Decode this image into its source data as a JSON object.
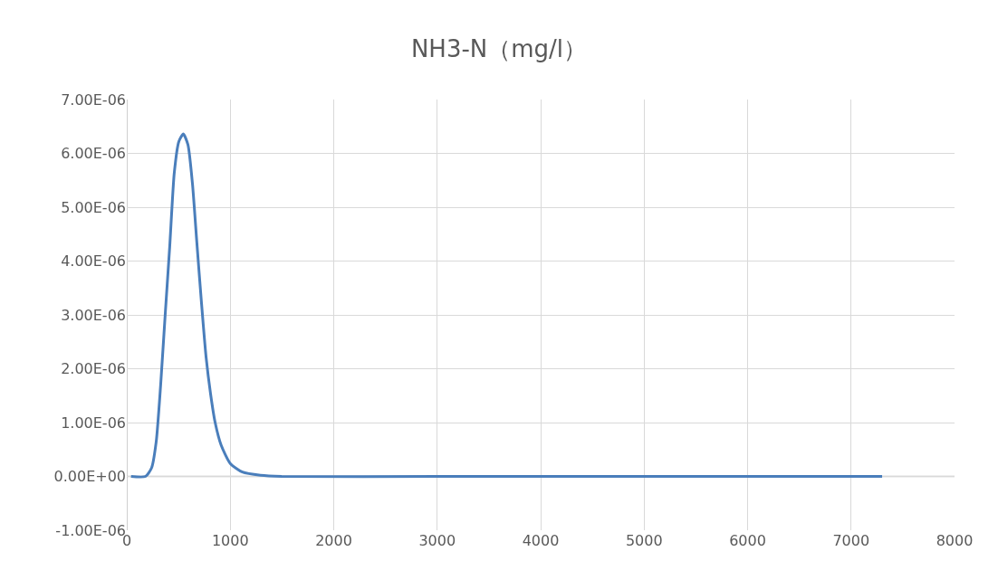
{
  "chart_data": {
    "type": "line",
    "title": "NH3-N（mg/l）",
    "series": [
      {
        "color": "#4a7ebb",
        "x": [
          41,
          181,
          240,
          284,
          327,
          371,
          415,
          459,
          503,
          547,
          591,
          635,
          678,
          722,
          766,
          810,
          854,
          912,
          1000,
          1117,
          1292,
          1497,
          3000,
          5000,
          7300
        ],
        "values": [
          0,
          0,
          1.6e-07,
          6.4e-07,
          1.69e-06,
          3e-06,
          4.27e-06,
          5.64e-06,
          6.22e-06,
          6.36e-06,
          6.16e-06,
          5.43e-06,
          4.32e-06,
          3.22e-06,
          2.22e-06,
          1.53e-06,
          1e-06,
          5.8e-07,
          2.4e-07,
          8e-08,
          2e-08,
          0,
          0,
          0,
          0
        ]
      }
    ],
    "xlim": [
      0,
      8000
    ],
    "xticks": [
      0,
      1000,
      2000,
      3000,
      4000,
      5000,
      6000,
      7000,
      8000
    ],
    "ylim": [
      -1e-06,
      7e-06
    ],
    "yticks": [
      {
        "value": -1e-06,
        "label": "-1.00E-06"
      },
      {
        "value": 0,
        "label": "0.00E+00"
      },
      {
        "value": 1e-06,
        "label": "1.00E-06"
      },
      {
        "value": 2e-06,
        "label": "2.00E-06"
      },
      {
        "value": 3e-06,
        "label": "3.00E-06"
      },
      {
        "value": 4e-06,
        "label": "4.00E-06"
      },
      {
        "value": 5e-06,
        "label": "5.00E-06"
      },
      {
        "value": 6e-06,
        "label": "6.00E-06"
      },
      {
        "value": 7e-06,
        "label": "7.00E-06"
      }
    ],
    "grid": true,
    "legend": false,
    "marker": "none",
    "line_style": "solid"
  }
}
